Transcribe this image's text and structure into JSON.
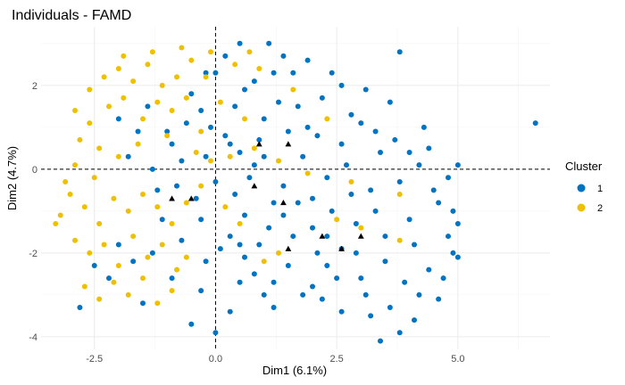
{
  "chart_data": {
    "type": "scatter",
    "title": "Individuals - FAMD",
    "xlabel": "Dim1 (6.1%)",
    "ylabel": "Dim2 (4.7%)",
    "xlim": [
      -3.6,
      6.9
    ],
    "ylim": [
      -4.3,
      3.4
    ],
    "x_ticks": [
      -2.5,
      0.0,
      2.5,
      5.0
    ],
    "x_tick_labels": [
      "-2.5",
      "0.0",
      "2.5",
      "5.0"
    ],
    "y_ticks": [
      -4,
      -2,
      0,
      2
    ],
    "y_tick_labels": [
      "-4",
      "-2",
      "0",
      "2"
    ],
    "grid": true,
    "reference_lines": {
      "x": 0,
      "y": 0,
      "style": "dashed"
    },
    "legend": {
      "title": "Cluster",
      "position": "right",
      "entries": [
        {
          "label": "1",
          "color": "#0073C2"
        },
        {
          "label": "2",
          "color": "#EFC000"
        }
      ]
    },
    "series": [
      {
        "name": "1",
        "color": "#0073C2",
        "marker": "circle",
        "points": [
          [
            -2.8,
            -3.3
          ],
          [
            -1.2,
            -0.5
          ],
          [
            -0.5,
            1.8
          ],
          [
            0.0,
            2.3
          ],
          [
            0.2,
            2.7
          ],
          [
            0.8,
            2.1
          ],
          [
            1.0,
            1.2
          ],
          [
            1.5,
            0.9
          ],
          [
            0.5,
            0.4
          ],
          [
            0.2,
            0.8
          ],
          [
            1.8,
            0.3
          ],
          [
            2.3,
            -0.2
          ],
          [
            2.6,
            0.6
          ],
          [
            3.0,
            1.1
          ],
          [
            3.4,
            0.4
          ],
          [
            3.8,
            -0.3
          ],
          [
            4.2,
            0.1
          ],
          [
            4.6,
            -0.8
          ],
          [
            5.0,
            0.1
          ],
          [
            6.6,
            1.1
          ],
          [
            3.8,
            2.8
          ],
          [
            2.6,
            2.0
          ],
          [
            1.6,
            2.3
          ],
          [
            1.2,
            -0.8
          ],
          [
            0.6,
            -1.1
          ],
          [
            0.9,
            -1.8
          ],
          [
            1.5,
            -2.3
          ],
          [
            2.0,
            -1.4
          ],
          [
            2.6,
            -1.9
          ],
          [
            3.0,
            -2.6
          ],
          [
            3.6,
            -3.3
          ],
          [
            3.8,
            -3.9
          ],
          [
            4.4,
            -2.4
          ],
          [
            4.9,
            -2.0
          ],
          [
            5.0,
            -2.1
          ],
          [
            4.8,
            -1.6
          ],
          [
            4.9,
            -1.0
          ],
          [
            4.5,
            -0.5
          ],
          [
            4.0,
            -1.2
          ],
          [
            3.3,
            -1.0
          ],
          [
            0.0,
            -3.9
          ],
          [
            -0.5,
            -3.7
          ],
          [
            0.3,
            -3.4
          ],
          [
            1.2,
            -3.3
          ],
          [
            2.0,
            -2.8
          ],
          [
            2.6,
            -3.4
          ],
          [
            3.4,
            -4.1
          ],
          [
            0.8,
            -2.5
          ],
          [
            0.3,
            -1.6
          ],
          [
            -0.3,
            -1.2
          ],
          [
            -0.7,
            0.2
          ],
          [
            -1.0,
            0.9
          ],
          [
            -1.4,
            1.5
          ],
          [
            -0.2,
            0.3
          ],
          [
            0.4,
            1.5
          ],
          [
            0.9,
            0.7
          ],
          [
            1.3,
            1.6
          ],
          [
            1.9,
            1.0
          ],
          [
            2.2,
            1.7
          ],
          [
            1.1,
            3.0
          ],
          [
            1.4,
            2.7
          ],
          [
            -0.2,
            2.3
          ],
          [
            -0.6,
            1.1
          ],
          [
            -1.1,
            -1.2
          ],
          [
            -1.7,
            -2.2
          ],
          [
            -2.2,
            -2.6
          ],
          [
            -1.5,
            -3.2
          ],
          [
            -0.9,
            -2.6
          ],
          [
            -0.3,
            -2.9
          ],
          [
            0.6,
            -2.1
          ],
          [
            1.2,
            -2.7
          ],
          [
            1.8,
            -3.0
          ],
          [
            2.3,
            -2.3
          ],
          [
            2.9,
            -1.3
          ],
          [
            3.2,
            -0.5
          ],
          [
            2.7,
            0.1
          ],
          [
            2.1,
            0.8
          ],
          [
            1.7,
            1.5
          ],
          [
            0.4,
            -0.6
          ],
          [
            0.0,
            -0.3
          ],
          [
            -0.4,
            -0.7
          ],
          [
            0.7,
            -0.2
          ],
          [
            1.0,
            0.3
          ],
          [
            1.4,
            -0.4
          ],
          [
            2.0,
            -0.7
          ],
          [
            2.4,
            -1.0
          ],
          [
            2.8,
            -0.6
          ],
          [
            3.5,
            -1.6
          ],
          [
            4.1,
            -1.8
          ],
          [
            4.3,
            1.0
          ],
          [
            3.6,
            1.6
          ],
          [
            3.1,
            1.9
          ],
          [
            2.4,
            2.3
          ],
          [
            1.9,
            2.6
          ],
          [
            0.5,
            3.0
          ],
          [
            -0.3,
            1.4
          ],
          [
            -0.9,
            0.6
          ],
          [
            -1.6,
            0.9
          ],
          [
            -2.0,
            1.2
          ],
          [
            -1.8,
            0.3
          ],
          [
            -1.3,
            0.0
          ],
          [
            -0.8,
            -0.4
          ],
          [
            0.1,
            -1.9
          ],
          [
            0.5,
            -2.7
          ],
          [
            1.0,
            -3.0
          ],
          [
            1.6,
            -1.6
          ],
          [
            2.1,
            -2.0
          ],
          [
            2.5,
            -2.6
          ],
          [
            3.1,
            -3.0
          ],
          [
            3.9,
            -2.7
          ],
          [
            4.6,
            -3.1
          ],
          [
            4.1,
            -3.6
          ],
          [
            3.2,
            -3.5
          ],
          [
            2.2,
            -3.1
          ],
          [
            1.4,
            -1.1
          ],
          [
            0.8,
            0.1
          ],
          [
            0.3,
            0.6
          ],
          [
            -0.1,
            1.0
          ],
          [
            0.6,
            1.9
          ],
          [
            1.2,
            2.3
          ],
          [
            2.8,
            1.3
          ],
          [
            3.3,
            0.9
          ],
          [
            3.7,
            0.7
          ],
          [
            4.0,
            0.4
          ],
          [
            4.4,
            0.5
          ],
          [
            4.8,
            -0.2
          ],
          [
            5.0,
            -1.3
          ],
          [
            4.7,
            -2.6
          ],
          [
            4.2,
            -3.0
          ],
          [
            3.5,
            -2.2
          ],
          [
            2.9,
            -2.0
          ],
          [
            2.3,
            -1.6
          ],
          [
            1.7,
            -0.8
          ],
          [
            1.1,
            -1.4
          ],
          [
            0.5,
            -1.8
          ],
          [
            -0.2,
            -2.2
          ],
          [
            -0.7,
            -1.7
          ],
          [
            -1.3,
            -2.0
          ],
          [
            -2.0,
            -1.8
          ],
          [
            -2.5,
            -2.3
          ]
        ]
      },
      {
        "name": "2",
        "color": "#EFC000",
        "marker": "circle",
        "points": [
          [
            -2.6,
            1.9
          ],
          [
            -2.3,
            2.2
          ],
          [
            -2.0,
            2.4
          ],
          [
            -1.7,
            2.1
          ],
          [
            -1.4,
            2.5
          ],
          [
            -1.1,
            2.0
          ],
          [
            -0.8,
            2.2
          ],
          [
            -0.5,
            2.6
          ],
          [
            -0.2,
            2.2
          ],
          [
            0.4,
            2.5
          ],
          [
            0.9,
            2.4
          ],
          [
            -2.9,
            1.4
          ],
          [
            -2.6,
            1.1
          ],
          [
            -2.2,
            1.5
          ],
          [
            -1.9,
            1.7
          ],
          [
            -1.5,
            1.2
          ],
          [
            -1.2,
            1.6
          ],
          [
            -0.9,
            1.4
          ],
          [
            -0.6,
            1.7
          ],
          [
            -2.8,
            0.7
          ],
          [
            -3.2,
            -1.1
          ],
          [
            -3.0,
            -0.6
          ],
          [
            -2.7,
            -0.9
          ],
          [
            -2.4,
            -1.3
          ],
          [
            -2.1,
            -0.7
          ],
          [
            -1.8,
            -1.0
          ],
          [
            -1.5,
            -0.6
          ],
          [
            -1.2,
            -0.9
          ],
          [
            -0.9,
            -1.3
          ],
          [
            -0.6,
            -0.8
          ],
          [
            -2.9,
            -1.7
          ],
          [
            -2.6,
            -2.0
          ],
          [
            -2.3,
            -1.8
          ],
          [
            -2.0,
            -2.3
          ],
          [
            -1.7,
            -1.6
          ],
          [
            -1.4,
            -2.1
          ],
          [
            -1.1,
            -1.8
          ],
          [
            -0.8,
            -2.4
          ],
          [
            -2.7,
            -2.8
          ],
          [
            -2.4,
            -3.1
          ],
          [
            -2.1,
            -2.7
          ],
          [
            -1.8,
            -3.0
          ],
          [
            -1.5,
            -2.6
          ],
          [
            -1.2,
            -3.2
          ],
          [
            -0.9,
            -2.9
          ],
          [
            -3.1,
            -0.3
          ],
          [
            -2.5,
            -0.2
          ],
          [
            -2.0,
            0.3
          ],
          [
            -1.6,
            0.6
          ],
          [
            -1.0,
            0.8
          ],
          [
            -0.4,
            0.4
          ],
          [
            -0.1,
            0.2
          ],
          [
            0.3,
            0.3
          ],
          [
            0.8,
            0.5
          ],
          [
            1.3,
            0.2
          ],
          [
            1.9,
            -0.1
          ],
          [
            2.5,
            -1.2
          ],
          [
            2.8,
            -0.3
          ],
          [
            3.0,
            -1.4
          ],
          [
            3.8,
            -0.6
          ],
          [
            3.8,
            -1.7
          ],
          [
            2.3,
            1.2
          ],
          [
            1.6,
            1.9
          ],
          [
            0.6,
            1.2
          ],
          [
            0.1,
            1.6
          ],
          [
            -0.3,
            0.9
          ],
          [
            0.2,
            -0.9
          ],
          [
            0.5,
            -1.3
          ],
          [
            1.0,
            -2.2
          ],
          [
            1.3,
            -2.0
          ],
          [
            -1.9,
            2.7
          ],
          [
            -1.3,
            2.8
          ],
          [
            -0.7,
            2.9
          ],
          [
            -0.1,
            2.8
          ],
          [
            0.7,
            2.8
          ],
          [
            -2.4,
            0.5
          ],
          [
            -2.9,
            0.1
          ],
          [
            -3.3,
            -1.3
          ],
          [
            -0.3,
            -0.4
          ],
          [
            -0.6,
            -2.1
          ]
        ]
      },
      {
        "name": "",
        "color": "#000000",
        "marker": "triangle",
        "points": [
          [
            0.9,
            0.6
          ],
          [
            1.5,
            0.6
          ],
          [
            -0.5,
            -0.7
          ],
          [
            -0.9,
            -0.7
          ],
          [
            1.5,
            -1.9
          ],
          [
            2.2,
            -1.6
          ],
          [
            2.6,
            -1.9
          ],
          [
            3.0,
            -1.6
          ],
          [
            1.4,
            -0.8
          ],
          [
            0.8,
            -0.4
          ]
        ]
      }
    ]
  }
}
